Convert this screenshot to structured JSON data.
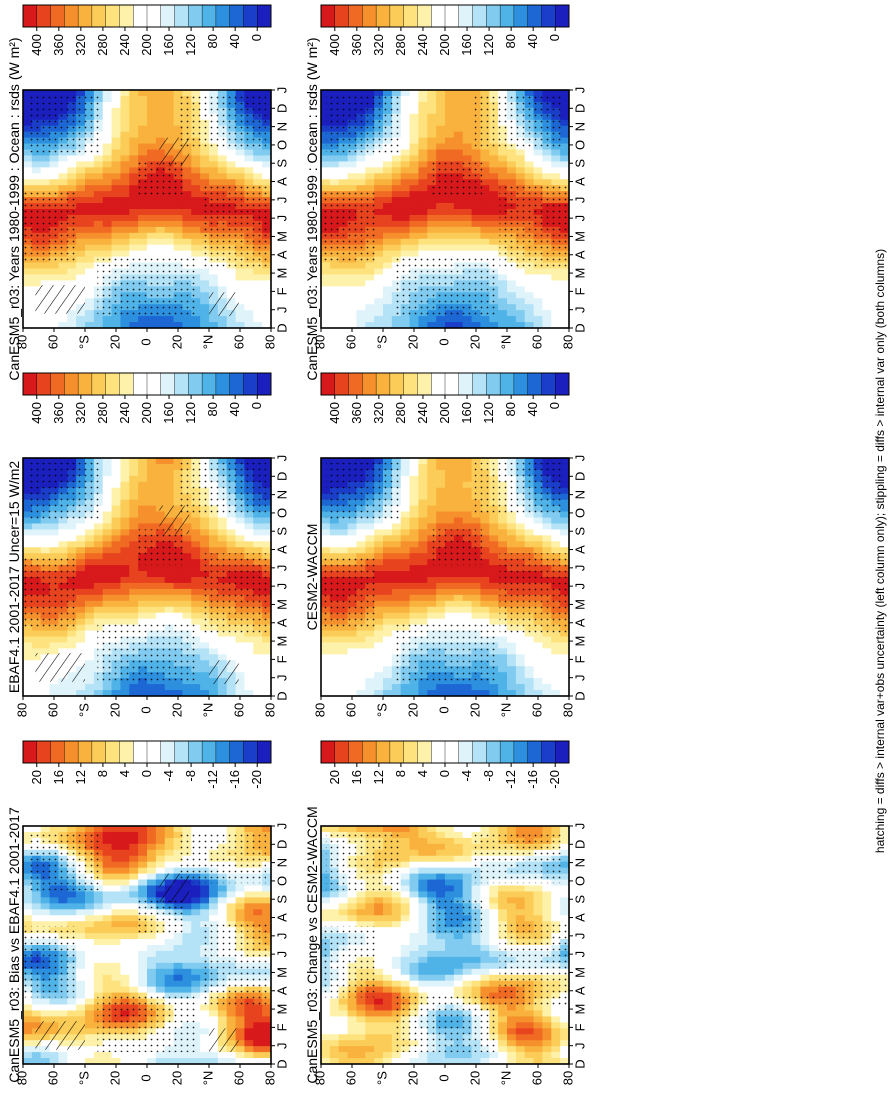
{
  "footnote": "hatching = diffs > internal var+obs uncertainty (left column only); stippling = diffs > internal var only (both columns)",
  "chart_data": [
    {
      "type": "heatmap",
      "id": "model-left",
      "title": "CanESM5_r03: Years 1980-1999 : Ocean : rsds (W m²)",
      "x_ticks": [
        "D",
        "J",
        "F",
        "M",
        "A",
        "M",
        "J",
        "J",
        "A",
        "S",
        "O",
        "N",
        "D",
        "J"
      ],
      "y_ticks": [
        "80",
        "60",
        "°S",
        "20",
        "0",
        "20",
        "°N",
        "60",
        "80"
      ],
      "colorbar_ticks": [
        "400",
        "360",
        "320",
        "280",
        "240",
        "200",
        "160",
        "120",
        "80",
        "40",
        "0"
      ],
      "colorbar_colors": [
        "#d7191c",
        "#e8431f",
        "#f06a23",
        "#f6902c",
        "#f9b23d",
        "#fbcc57",
        "#fde27e",
        "#fef2ab",
        "#ffffff",
        "#ffffff",
        "#dff3fb",
        "#b4e2f6",
        "#80cbef",
        "#4fb3e8",
        "#2c90df",
        "#1d67d4",
        "#1a3ec9",
        "#1a1fbd"
      ],
      "cbar_min": 0,
      "cbar_max": 400,
      "field": "irradiance"
    },
    {
      "type": "heatmap",
      "id": "model-right",
      "title": "CanESM5_r03: Years 1980-1999 : Ocean : rsds (W m²)",
      "x_ticks": [
        "D",
        "J",
        "F",
        "M",
        "A",
        "M",
        "J",
        "J",
        "A",
        "S",
        "O",
        "N",
        "D",
        "J"
      ],
      "y_ticks": [
        "80",
        "60",
        "°S",
        "20",
        "0",
        "20",
        "°N",
        "60",
        "80"
      ],
      "colorbar_ticks": [
        "400",
        "360",
        "320",
        "280",
        "240",
        "200",
        "160",
        "120",
        "80",
        "40",
        "0"
      ],
      "colorbar_colors": [
        "#d7191c",
        "#e8431f",
        "#f06a23",
        "#f6902c",
        "#f9b23d",
        "#fbcc57",
        "#fde27e",
        "#fef2ab",
        "#ffffff",
        "#ffffff",
        "#dff3fb",
        "#b4e2f6",
        "#80cbef",
        "#4fb3e8",
        "#2c90df",
        "#1d67d4",
        "#1a3ec9",
        "#1a1fbd"
      ],
      "cbar_min": 0,
      "cbar_max": 400,
      "field": "irradiance"
    },
    {
      "type": "heatmap",
      "id": "obs-left",
      "title": "EBAF4.1 2001-2017 Uncer=15 W/m2",
      "x_ticks": [
        "D",
        "J",
        "F",
        "M",
        "A",
        "M",
        "J",
        "J",
        "A",
        "S",
        "O",
        "N",
        "D",
        "J"
      ],
      "y_ticks": [
        "80",
        "60",
        "°S",
        "20",
        "0",
        "20",
        "°N",
        "60",
        "80"
      ],
      "colorbar_ticks": [
        "400",
        "360",
        "320",
        "280",
        "240",
        "200",
        "160",
        "120",
        "80",
        "40",
        "0"
      ],
      "colorbar_colors": [
        "#d7191c",
        "#e8431f",
        "#f06a23",
        "#f6902c",
        "#f9b23d",
        "#fbcc57",
        "#fde27e",
        "#fef2ab",
        "#ffffff",
        "#ffffff",
        "#dff3fb",
        "#b4e2f6",
        "#80cbef",
        "#4fb3e8",
        "#2c90df",
        "#1d67d4",
        "#1a3ec9",
        "#1a1fbd"
      ],
      "cbar_min": 0,
      "cbar_max": 400,
      "field": "irradiance"
    },
    {
      "type": "heatmap",
      "id": "obs-right",
      "title": "CESM2-WACCM",
      "x_ticks": [
        "D",
        "J",
        "F",
        "M",
        "A",
        "M",
        "J",
        "J",
        "A",
        "S",
        "O",
        "N",
        "D",
        "J"
      ],
      "y_ticks": [
        "80",
        "60",
        "°S",
        "20",
        "0",
        "20",
        "°N",
        "60",
        "80"
      ],
      "colorbar_ticks": [
        "400",
        "360",
        "320",
        "280",
        "240",
        "200",
        "160",
        "120",
        "80",
        "40",
        "0"
      ],
      "colorbar_colors": [
        "#d7191c",
        "#e8431f",
        "#f06a23",
        "#f6902c",
        "#f9b23d",
        "#fbcc57",
        "#fde27e",
        "#fef2ab",
        "#ffffff",
        "#ffffff",
        "#dff3fb",
        "#b4e2f6",
        "#80cbef",
        "#4fb3e8",
        "#2c90df",
        "#1d67d4",
        "#1a3ec9",
        "#1a1fbd"
      ],
      "cbar_min": 0,
      "cbar_max": 400,
      "field": "irradiance"
    },
    {
      "type": "heatmap",
      "id": "diff-left",
      "title": "CanESM5_r03: Bias vs EBAF4.1 2001-2017",
      "x_ticks": [
        "D",
        "J",
        "F",
        "M",
        "A",
        "M",
        "J",
        "J",
        "A",
        "S",
        "O",
        "N",
        "D",
        "J"
      ],
      "y_ticks": [
        "80",
        "60",
        "°S",
        "20",
        "0",
        "20",
        "°N",
        "60",
        "80"
      ],
      "colorbar_ticks": [
        "20",
        "16",
        "12",
        "8",
        "4",
        "0",
        "-4",
        "-8",
        "-12",
        "-16",
        "-20"
      ],
      "colorbar_colors": [
        "#d7191c",
        "#e8431f",
        "#f06a23",
        "#f6902c",
        "#f9b23d",
        "#fbcc57",
        "#fde27e",
        "#fef2ab",
        "#ffffff",
        "#ffffff",
        "#dff3fb",
        "#b4e2f6",
        "#80cbef",
        "#4fb3e8",
        "#2c90df",
        "#1d67d4",
        "#1a3ec9",
        "#1a1fbd"
      ],
      "cbar_min": -20,
      "cbar_max": 20,
      "field": "difference"
    },
    {
      "type": "heatmap",
      "id": "diff-right",
      "title": "CanESM5_r03: Change vs CESM2-WACCM",
      "x_ticks": [
        "D",
        "J",
        "F",
        "M",
        "A",
        "M",
        "J",
        "J",
        "A",
        "S",
        "O",
        "N",
        "D",
        "J"
      ],
      "y_ticks": [
        "80",
        "60",
        "°S",
        "20",
        "0",
        "20",
        "°N",
        "60",
        "80"
      ],
      "colorbar_ticks": [
        "20",
        "16",
        "12",
        "8",
        "4",
        "0",
        "-4",
        "-8",
        "-12",
        "-16",
        "-20"
      ],
      "colorbar_colors": [
        "#d7191c",
        "#e8431f",
        "#f06a23",
        "#f6902c",
        "#f9b23d",
        "#fbcc57",
        "#fde27e",
        "#fef2ab",
        "#ffffff",
        "#ffffff",
        "#dff3fb",
        "#b4e2f6",
        "#80cbef",
        "#4fb3e8",
        "#2c90df",
        "#1d67d4",
        "#1a3ec9",
        "#1a1fbd"
      ],
      "cbar_min": -20,
      "cbar_max": 20,
      "field": "difference"
    }
  ]
}
